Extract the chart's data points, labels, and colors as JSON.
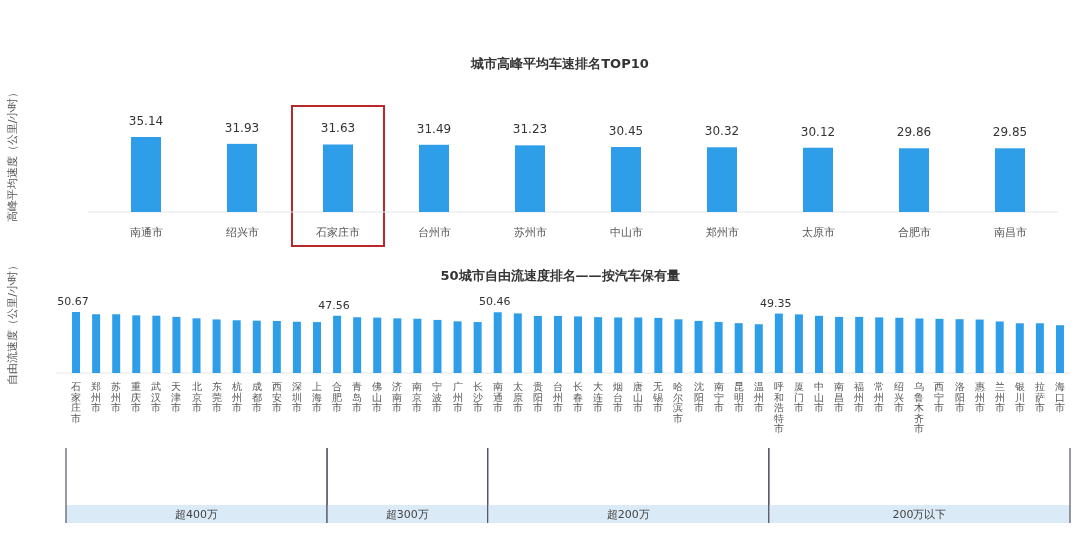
{
  "chart_data": [
    {
      "type": "bar",
      "title": "城市高峰平均车速排名TOP10",
      "ylabel": "高峰平均速度（公里/小时）",
      "categories": [
        "南通市",
        "绍兴市",
        "石家庄市",
        "台州市",
        "苏州市",
        "中山市",
        "郑州市",
        "太原市",
        "合肥市",
        "南昌市"
      ],
      "values": [
        35.14,
        31.93,
        31.63,
        31.49,
        31.23,
        30.45,
        30.32,
        30.12,
        29.86,
        29.85
      ],
      "color": "#2f9ee9",
      "data_labels": true
    },
    {
      "type": "bar",
      "title": "50城市自由流速度排名——按汽车保有量",
      "ylabel": "自由流速度（公里/小时）",
      "categories": [
        "石家庄市",
        "郑州市",
        "苏州市",
        "重庆市",
        "武汉市",
        "天津市",
        "北京市",
        "东莞市",
        "杭州市",
        "成都市",
        "西安市",
        "深圳市",
        "上海市",
        "合肥市",
        "青岛市",
        "佛山市",
        "济南市",
        "南京市",
        "宁波市",
        "广州市",
        "长沙市",
        "南通市",
        "太原市",
        "贵阳市",
        "台州市",
        "长春市",
        "大连市",
        "烟台市",
        "唐山市",
        "无锡市",
        "哈尔滨市",
        "沈阳市",
        "南宁市",
        "昆明市",
        "温州市",
        "呼和浩特市",
        "厦门市",
        "中山市",
        "南昌市",
        "福州市",
        "常州市",
        "绍兴市",
        "乌鲁木齐市",
        "西宁市",
        "洛阳市",
        "惠州市",
        "兰州市",
        "银川市",
        "拉萨市",
        "海口市"
      ],
      "values": [
        50.67,
        48.8,
        48.8,
        47.9,
        47.6,
        46.6,
        45.4,
        44.5,
        43.8,
        43.5,
        43.2,
        42.6,
        42.3,
        47.56,
        46.3,
        46.0,
        45.4,
        45.1,
        44.1,
        42.9,
        42.3,
        50.46,
        49.5,
        47.4,
        47.4,
        47.0,
        46.4,
        46.1,
        46.1,
        45.8,
        44.6,
        43.3,
        42.4,
        41.4,
        40.5,
        49.35,
        48.7,
        47.5,
        46.6,
        46.6,
        46.2,
        45.9,
        45.3,
        45.0,
        44.7,
        44.4,
        42.8,
        41.3,
        41.3,
        39.7
      ],
      "value_labels": [
        "50.67",
        null,
        null,
        null,
        null,
        null,
        null,
        null,
        null,
        null,
        null,
        null,
        null,
        "47.56",
        null,
        null,
        null,
        null,
        null,
        null,
        null,
        "50.46",
        null,
        null,
        null,
        null,
        null,
        null,
        null,
        null,
        null,
        null,
        null,
        null,
        null,
        "49.35",
        null,
        null,
        null,
        null,
        null,
        null,
        null,
        null,
        null,
        null,
        null,
        null,
        null,
        null
      ],
      "color": "#2f9ee9",
      "annotations": [
        "超400万",
        "超300万",
        "超200万",
        "200万以下"
      ]
    }
  ]
}
